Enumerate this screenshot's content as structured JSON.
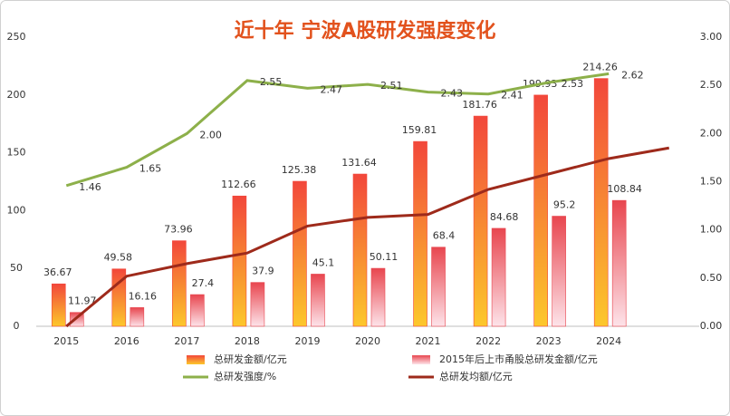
{
  "chart_data": {
    "type": "bar-line",
    "title": "近十年 宁波A股研发强度变化",
    "categories": [
      "2015",
      "2016",
      "2017",
      "2018",
      "2019",
      "2020",
      "2021",
      "2022",
      "2023",
      "2024",
      null
    ],
    "series": [
      {
        "name": "总研发金额/亿元",
        "type": "bar",
        "color": "#f2473b",
        "values": [
          36.67,
          49.58,
          73.96,
          112.66,
          125.38,
          131.64,
          159.81,
          181.76,
          199.93,
          214.26,
          null
        ]
      },
      {
        "name": "2015年后上市甬股总研发金额/亿元",
        "type": "bar",
        "color": "#e8464f",
        "values": [
          11.97,
          16.16,
          27.4,
          37.9,
          45.1,
          50.11,
          68.4,
          84.68,
          95.2,
          108.84,
          null
        ]
      },
      {
        "name": "总研发强度/%",
        "type": "line",
        "axis": "y2",
        "color": "#8db04a",
        "values": [
          1.46,
          1.65,
          2.0,
          2.55,
          2.47,
          2.51,
          2.43,
          2.41,
          2.53,
          2.62,
          null
        ],
        "value_labels": [
          "1.46",
          "1.65",
          "2.00",
          "2.55",
          "2.47",
          "2.51",
          "2.43",
          "2.41",
          "2.53",
          "2.62",
          null
        ]
      },
      {
        "name": "总研发均额/亿元",
        "type": "line",
        "axis": "y2",
        "color": "#9e2a1b",
        "values": [
          0.0,
          0.52,
          0.65,
          0.76,
          1.04,
          1.13,
          1.16,
          1.42,
          1.58,
          1.74,
          1.85
        ]
      }
    ],
    "ylim": [
      0,
      250
    ],
    "yticks": [
      0,
      50,
      100,
      150,
      200,
      250
    ],
    "y2lim": [
      0,
      3
    ],
    "y2ticks": [
      {
        "value": 0,
        "label": "0.00"
      },
      {
        "value": 0.5,
        "label": "0.50"
      },
      {
        "value": 1,
        "label": "1.00"
      },
      {
        "value": 1.5,
        "label": "1.50"
      },
      {
        "value": 2,
        "label": "2.00"
      },
      {
        "value": 2.5,
        "label": "2.50"
      },
      {
        "value": 3,
        "label": "3.00"
      }
    ]
  }
}
